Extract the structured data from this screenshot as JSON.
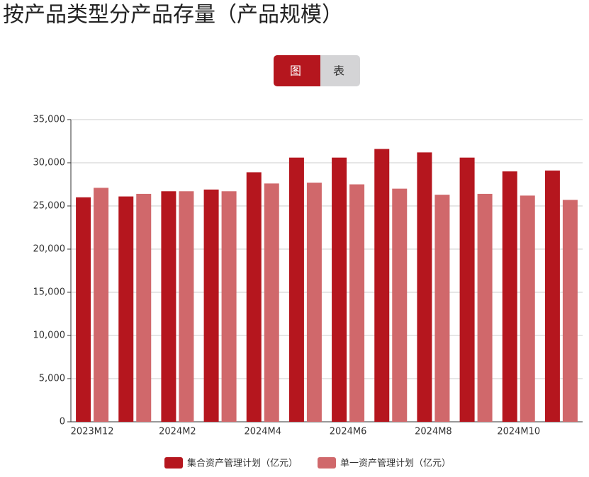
{
  "toggle": [
    "图",
    "表"
  ],
  "chart_data": {
    "type": "bar",
    "title": "按产品类型分产品存量（产品规模）",
    "categories": [
      "2023M12",
      null,
      "2024M2",
      null,
      "2024M4",
      null,
      "2024M6",
      null,
      "2024M8",
      null,
      "2024M10",
      null
    ],
    "series": [
      {
        "name": "集合资产管理计划（亿元）",
        "color": "#b5161e",
        "values": [
          26000,
          26100,
          26700,
          26900,
          28900,
          30600,
          30600,
          31600,
          31200,
          30600,
          29000,
          29100
        ]
      },
      {
        "name": "单一资产管理计划（亿元）",
        "color": "#d0686b",
        "values": [
          27100,
          26400,
          26700,
          26700,
          27600,
          27700,
          27500,
          27000,
          26300,
          26400,
          26200,
          25700
        ]
      }
    ],
    "ylim": [
      0,
      35000
    ],
    "yticks": [
      0,
      {
        "value": 5000,
        "label": "5,000"
      },
      {
        "value": 10000,
        "label": "10,000"
      },
      {
        "value": 15000,
        "label": "15,000"
      },
      {
        "value": 20000,
        "label": "20,000"
      },
      {
        "value": 25000,
        "label": "25,000"
      },
      {
        "value": 30000,
        "label": "30,000"
      },
      {
        "value": 35000,
        "label": "35,000"
      }
    ],
    "grid": true
  }
}
